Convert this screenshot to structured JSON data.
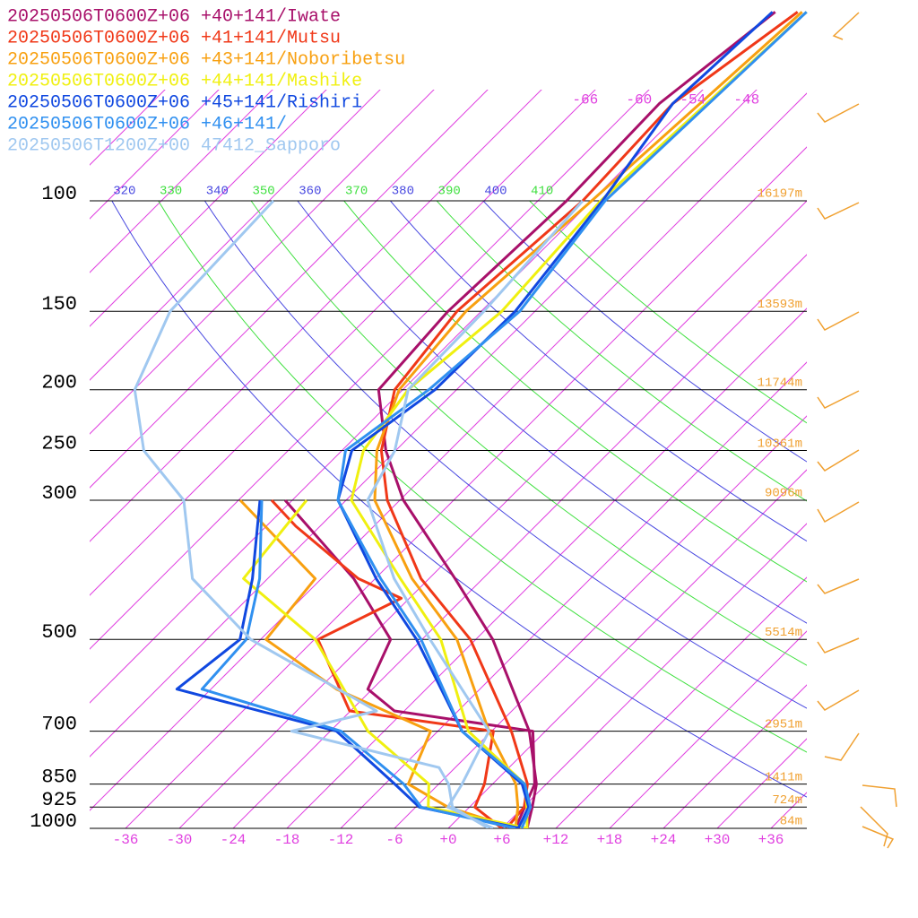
{
  "chart_data": {
    "type": "skew-t",
    "xlim": [
      -40,
      40
    ],
    "ylim": [
      1000,
      100
    ],
    "xticks": [
      -36,
      -30,
      -24,
      -18,
      -12,
      -6,
      {
        "value": 0,
        "label": "+0"
      },
      {
        "value": 6,
        "label": "+6"
      },
      {
        "value": 12,
        "label": "+12"
      },
      {
        "value": 18,
        "label": "+18"
      },
      {
        "value": 24,
        "label": "+24"
      },
      {
        "value": 30,
        "label": "+30"
      },
      {
        "value": 36,
        "label": "+36"
      }
    ],
    "levels": [
      {
        "pressure": 100,
        "height": {
          "value": 16197,
          "label": "16197m"
        }
      },
      {
        "pressure": 150,
        "height": {
          "value": 13593,
          "label": "13593m"
        }
      },
      {
        "pressure": 200,
        "height": {
          "value": 11744,
          "label": "11744m"
        }
      },
      {
        "pressure": 250,
        "height": {
          "value": 10361,
          "label": "10361m"
        }
      },
      {
        "pressure": 300,
        "height": {
          "value": 9096,
          "label": "9096m"
        }
      },
      {
        "pressure": 500,
        "height": {
          "value": 5514,
          "label": "5514m"
        }
      },
      {
        "pressure": 700,
        "height": {
          "value": 2951,
          "label": "2951m"
        }
      },
      {
        "pressure": 850,
        "height": {
          "value": 1411,
          "label": "1411m"
        }
      },
      {
        "pressure": 925,
        "height": {
          "value": 724,
          "label": "724m"
        }
      },
      {
        "pressure": 1000,
        "height": {
          "value": 84,
          "label": "84m"
        }
      }
    ],
    "isotherm_color": "#e040e0",
    "isotherms": [
      -114,
      -108,
      -102,
      -96,
      -90,
      -84,
      -78,
      -72,
      -66,
      -60,
      -54,
      -48,
      -42,
      -36,
      -30,
      -24,
      -18,
      -12,
      -6,
      0,
      6,
      12,
      18,
      24,
      30,
      36
    ],
    "isotherm_labels": {
      "pressure": 69,
      "values": [
        -66,
        -60,
        -54,
        -48
      ]
    },
    "theta_lines": [
      {
        "value": 320,
        "color": "#4848e0"
      },
      {
        "value": 330,
        "color": "#40e040"
      },
      {
        "value": 340,
        "color": "#4848e0"
      },
      {
        "value": 350,
        "color": "#40e040"
      },
      {
        "value": 360,
        "color": "#4848e0"
      },
      {
        "value": 370,
        "color": "#40e040"
      },
      {
        "value": 380,
        "color": "#4848e0"
      },
      {
        "value": 390,
        "color": "#40e040"
      },
      {
        "value": 400,
        "color": "#4848e0"
      },
      {
        "value": 410,
        "color": "#40e040"
      }
    ],
    "series": [
      {
        "name": "20250506T0600Z+06 +40+141/Iwate",
        "color": "#a8106a",
        "temperature": {
          "pressure": [
            1000,
            925,
            850,
            700,
            500,
            400,
            300,
            250,
            200,
            150,
            100,
            70,
            50
          ],
          "values": [
            8.8,
            7.0,
            4.9,
            -1.8,
            -16.1,
            -27.1,
            -41.6,
            -49.1,
            -56.7,
            -57.7,
            -56.8,
            -57.3,
            -54.6
          ]
        },
        "dewpoint": {
          "pressure": [
            1000,
            850,
            700,
            650,
            600,
            500,
            400,
            300
          ],
          "values": [
            7.5,
            4.7,
            -1.4,
            -19.1,
            -24.5,
            -27.5,
            -38.4,
            -54.8
          ]
        }
      },
      {
        "name": "20250506T0600Z+06 +41+141/Mutsu",
        "color": "#f03818",
        "temperature": {
          "pressure": [
            1000,
            925,
            850,
            700,
            500,
            400,
            300,
            250,
            200,
            150,
            100,
            70,
            50
          ],
          "values": [
            6.5,
            6.1,
            3.9,
            -3.8,
            -18.6,
            -30.9,
            -43.4,
            -49.6,
            -54.9,
            -56.7,
            -55.0,
            -55.8,
            -52.1
          ]
        },
        "dewpoint": {
          "pressure": [
            1000,
            925,
            850,
            700,
            650,
            500,
            430,
            400,
            330,
            300
          ],
          "values": [
            6.0,
            0.6,
            -0.9,
            -5.8,
            -24.1,
            -35.6,
            -30.9,
            -37.9,
            -50.7,
            -56.3
          ]
        }
      },
      {
        "name": "20250506T0600Z+06 +43+141/Noboribetsu",
        "color": "#f8a010",
        "temperature": {
          "pressure": [
            1000,
            925,
            850,
            700,
            500,
            400,
            300,
            250,
            200,
            150,
            100,
            50
          ],
          "values": [
            7.5,
            5.4,
            2.6,
            -6.3,
            -20.1,
            -31.9,
            -44.8,
            -50.1,
            -54.4,
            -55.7,
            -54.0,
            -51.6
          ]
        },
        "dewpoint": {
          "pressure": [
            1000,
            925,
            850,
            700,
            600,
            500,
            400,
            300
          ],
          "values": [
            7.5,
            -2.4,
            -9.4,
            -12.8,
            -28.0,
            -41.4,
            -42.7,
            -59.8
          ]
        }
      },
      {
        "name": "20250506T0600Z+06 +44+141/Mashike",
        "color": "#f0f010",
        "temperature": {
          "pressure": [
            1000,
            925,
            850,
            700,
            500,
            400,
            300,
            250,
            200,
            150,
            100,
            50
          ],
          "values": [
            8.8,
            6.4,
            3.6,
            -8.6,
            -21.9,
            -33.2,
            -47.4,
            -51.6,
            -53.4,
            -51.7,
            -53.0,
            -51.1
          ]
        },
        "dewpoint": {
          "pressure": [
            1000,
            925,
            850,
            700,
            500,
            400,
            300
          ],
          "values": [
            8.8,
            -4.6,
            -7.1,
            -19.8,
            -35.9,
            -50.7,
            -52.4
          ]
        }
      },
      {
        "name": "20250506T0600Z+06 +45+141/Rishiri",
        "color": "#1048e0",
        "temperature": {
          "pressure": [
            1000,
            925,
            850,
            700,
            500,
            400,
            300,
            250,
            200,
            150,
            100,
            70,
            50
          ],
          "values": [
            7.8,
            6.6,
            3.3,
            -9.3,
            -24.6,
            -35.9,
            -48.9,
            -52.9,
            -50.4,
            -50.2,
            -52.8,
            -55.8,
            -54.9
          ]
        },
        "dewpoint": {
          "pressure": [
            1000,
            925,
            850,
            700,
            600,
            500,
            400,
            300
          ],
          "values": [
            8.0,
            -5.6,
            -10.9,
            -23.3,
            -45.8,
            -44.3,
            -49.7,
            -57.6
          ]
        }
      },
      {
        "name": "20250506T0600Z+06 +46+141/",
        "color": "#3090f0",
        "temperature": {
          "pressure": [
            1000,
            925,
            850,
            700,
            500,
            400,
            300,
            250,
            200,
            150,
            100,
            50
          ],
          "values": [
            8.2,
            6.8,
            3.6,
            -9.3,
            -24.1,
            -35.4,
            -48.9,
            -53.6,
            -51.1,
            -49.7,
            -52.5,
            -51.1
          ]
        },
        "dewpoint": {
          "pressure": [
            1000,
            925,
            850,
            700,
            600,
            500,
            400,
            300
          ],
          "values": [
            7.5,
            -5.4,
            -9.9,
            -22.8,
            -43.0,
            -43.6,
            -48.9,
            -57.4
          ]
        }
      },
      {
        "name": "20250506T1200Z+00 47412_Sapporo",
        "color": "#a0c8f0",
        "temperature": {
          "pressure": [
            1000,
            925,
            850,
            700,
            500,
            400,
            300,
            250,
            200,
            150,
            100
          ],
          "values": [
            5.0,
            -2.4,
            -3.4,
            -6.3,
            -23.1,
            -33.9,
            -45.6,
            -48.1,
            -53.4,
            -53.7,
            -55.0
          ]
        },
        "dewpoint": {
          "pressure": [
            1000,
            925,
            850,
            800,
            700,
            650,
            500,
            400,
            300,
            250,
            200,
            150,
            100
          ],
          "values": [
            4.5,
            -1.9,
            -4.9,
            -7.8,
            -28.3,
            -21.1,
            -43.1,
            -56.4,
            -66.1,
            -76.1,
            -83.9,
            -88.7,
            -89.5
          ]
        }
      }
    ]
  }
}
